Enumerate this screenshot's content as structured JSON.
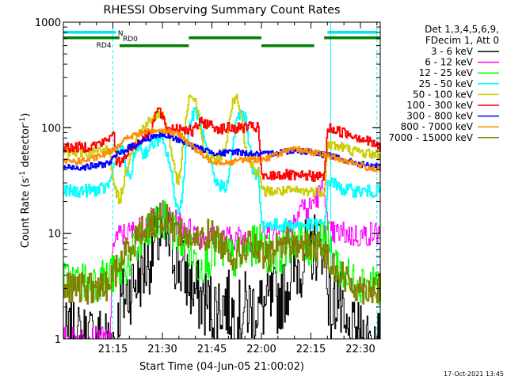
{
  "chart_data": {
    "type": "line",
    "title": "RHESSI Observing Summary Count Rates",
    "xlabel": "Start Time (04-Jun-05 21:00:02)",
    "ylabel": "Count Rate (s⁻¹ detector⁻¹)",
    "ylabel_parts": [
      "Count Rate (s",
      "-1",
      " detector",
      "-1",
      ")"
    ],
    "y_scale": "log",
    "ylim": [
      1,
      1000
    ],
    "xlim": [
      0,
      96
    ],
    "x_ticks": [
      {
        "t": 15,
        "label": "21:15"
      },
      {
        "t": 30,
        "label": "21:30"
      },
      {
        "t": 45,
        "label": "21:45"
      },
      {
        "t": 60,
        "label": "22:00"
      },
      {
        "t": 75,
        "label": "22:15"
      },
      {
        "t": 90,
        "label": "22:30"
      }
    ],
    "y_ticks": [
      {
        "v": 1,
        "label": "1"
      },
      {
        "v": 10,
        "label": "10"
      },
      {
        "v": 100,
        "label": "100"
      },
      {
        "v": 1000,
        "label": "1000"
      }
    ],
    "legend_position": "right",
    "legend_header": [
      "Det 1,3,4,5,6,9,",
      "FDecim 1, Att 0"
    ],
    "timestamp": "17-Oct-2021 13:45",
    "vertical_markers": [
      {
        "t": 0,
        "color": "#00ffff",
        "style": "solid"
      },
      {
        "t": 15,
        "color": "#00ffff",
        "style": "dashed"
      },
      {
        "t": 81,
        "color": "#00ffff",
        "style": "solid"
      },
      {
        "t": 95,
        "color": "#00ffff",
        "style": "dashed"
      }
    ],
    "flag_bars": [
      {
        "t0": 0,
        "t1": 16,
        "level": 0,
        "color": "#00e5ee"
      },
      {
        "t0": 80,
        "t1": 95,
        "level": 0,
        "color": "#00e5ee"
      },
      {
        "t0": 0,
        "t1": 17,
        "level": 1,
        "color": "#007f00"
      },
      {
        "t0": 38,
        "t1": 60,
        "level": 1,
        "color": "#007f00"
      },
      {
        "t0": 79,
        "t1": 96,
        "level": 1,
        "color": "#007f00"
      },
      {
        "t0": 17,
        "t1": 38,
        "level": 2,
        "color": "#007f00"
      },
      {
        "t0": 60,
        "t1": 76,
        "level": 2,
        "color": "#007f00"
      }
    ],
    "flag_labels": [
      {
        "text": "N",
        "t": 16.5,
        "level": 0,
        "color": "#00e5ee"
      },
      {
        "text": "RD0",
        "t": 18,
        "level": 1,
        "color": "#007f00"
      },
      {
        "text": "RD4",
        "t": 10,
        "level": 2,
        "color": "#007f00"
      }
    ],
    "series": [
      {
        "name": "3 - 6 keV",
        "color": "#000000",
        "noise": 0.35,
        "x": [
          0,
          5,
          10,
          14,
          16,
          17,
          20,
          23,
          25,
          27,
          29,
          31,
          33,
          35,
          37,
          39,
          41,
          43,
          45,
          47,
          49,
          51,
          53,
          55,
          57,
          59,
          61,
          63,
          65,
          67,
          69,
          71,
          73,
          75,
          77,
          79,
          81,
          83,
          85,
          87,
          89,
          91,
          93,
          95,
          96
        ],
        "values": [
          1,
          1,
          1,
          1,
          1,
          2,
          3,
          4,
          5,
          7,
          9,
          9,
          7,
          5,
          4,
          3,
          2.5,
          2.2,
          2,
          2,
          2.3,
          1.8,
          1.6,
          2,
          2,
          2,
          2,
          2.2,
          2.4,
          3,
          4,
          5,
          6,
          7,
          8,
          9,
          1.5,
          3,
          1,
          1,
          1,
          1,
          1,
          1,
          1
        ]
      },
      {
        "name": "6 - 12 keV",
        "color": "#ff00ff",
        "noise": 0.12,
        "x": [
          0,
          5,
          10,
          14,
          15,
          17,
          20,
          23,
          26,
          29,
          30,
          33,
          36,
          39,
          42,
          45,
          48,
          51,
          54,
          57,
          60,
          62,
          64,
          66,
          68,
          70,
          72,
          74,
          76,
          78,
          79,
          80,
          82,
          85,
          88,
          91,
          93,
          95,
          96
        ],
        "values": [
          1,
          1,
          1,
          1,
          9,
          9.5,
          10,
          11,
          13,
          15,
          16,
          13,
          12,
          10.5,
          9.5,
          9,
          9,
          9,
          9,
          8.5,
          9,
          9.5,
          10,
          10,
          11,
          14,
          19,
          16,
          21,
          24,
          30,
          10,
          10,
          10,
          9.5,
          9.5,
          10,
          10,
          10
        ]
      },
      {
        "name": "12 - 25 keV",
        "color": "#00ff00",
        "noise": 0.2,
        "x": [
          0,
          5,
          10,
          14,
          16,
          19,
          22,
          26,
          29,
          31,
          34,
          37,
          39,
          41,
          44,
          47,
          50,
          53,
          56,
          59,
          62,
          65,
          68,
          71,
          74,
          77,
          79,
          81,
          83,
          85,
          88,
          91,
          93,
          95,
          96
        ],
        "values": [
          3.5,
          3.5,
          3.5,
          4,
          4,
          5,
          7,
          10,
          13,
          13,
          10,
          8,
          6,
          5,
          6,
          7.5,
          6,
          5.5,
          7,
          8,
          6.5,
          6,
          8,
          9,
          7,
          9,
          10,
          7,
          5,
          4,
          3.5,
          3.5,
          3.5,
          3.5,
          3.2
        ]
      },
      {
        "name": "25 - 50 keV",
        "color": "#00ffff",
        "noise": 0.06,
        "x": [
          0,
          4,
          8,
          12,
          14,
          15,
          16,
          18,
          19,
          20,
          21,
          23,
          24,
          25,
          26,
          27,
          28,
          29,
          30,
          31,
          32,
          33,
          34,
          35,
          36,
          37,
          38,
          39,
          40,
          41,
          42,
          44,
          46,
          48,
          49,
          50,
          51,
          52,
          53,
          54,
          55,
          56,
          57,
          58,
          59,
          60,
          61,
          62,
          63,
          64,
          65,
          67,
          69,
          71,
          73,
          75,
          77,
          79,
          80,
          81,
          82,
          83,
          85,
          87,
          89,
          91,
          93,
          95,
          96
        ],
        "values": [
          25,
          25,
          25.5,
          26,
          30,
          40,
          60,
          60,
          40,
          30,
          50,
          70,
          55,
          60,
          65,
          70,
          75,
          78,
          72,
          60,
          48,
          30,
          20,
          15,
          25,
          60,
          100,
          130,
          140,
          125,
          90,
          50,
          30,
          28,
          28,
          32,
          60,
          100,
          130,
          140,
          125,
          80,
          45,
          35,
          35,
          12,
          12,
          12,
          12,
          12,
          12,
          12,
          12,
          12,
          12,
          12,
          12,
          12,
          28,
          32,
          30,
          27,
          26,
          25.5,
          25,
          25,
          25,
          25,
          25
        ]
      },
      {
        "name": "50 - 100 keV",
        "color": "#cccc00",
        "noise": 0.05,
        "x": [
          0,
          4,
          8,
          12,
          14,
          15,
          17,
          19,
          21,
          23,
          25,
          27,
          28,
          29,
          30,
          31,
          32,
          33,
          34,
          35,
          36,
          37,
          38,
          39,
          40,
          41,
          42,
          44,
          46,
          48,
          49,
          50,
          51,
          52,
          53,
          54,
          55,
          56,
          57,
          58,
          59,
          60,
          61,
          63,
          65,
          67,
          69,
          71,
          73,
          75,
          77,
          79,
          80,
          82,
          85,
          88,
          91,
          94,
          96
        ],
        "values": [
          58,
          58,
          58,
          60,
          65,
          30,
          20,
          40,
          70,
          90,
          110,
          120,
          130,
          140,
          130,
          110,
          80,
          50,
          35,
          30,
          60,
          120,
          180,
          200,
          180,
          120,
          70,
          50,
          50,
          55,
          65,
          100,
          160,
          200,
          180,
          120,
          70,
          50,
          45,
          40,
          40,
          25,
          25,
          25,
          25,
          25,
          25,
          25,
          25,
          25,
          25,
          25,
          70,
          68,
          65,
          60,
          58,
          56,
          55
        ]
      },
      {
        "name": "100 - 300 keV",
        "color": "#ff0000",
        "noise": 0.05,
        "x": [
          0,
          4,
          8,
          12,
          14,
          15,
          16,
          18,
          20,
          22,
          24,
          26,
          27,
          28,
          29,
          30,
          31,
          32,
          33,
          34,
          36,
          38,
          39,
          40,
          41,
          42,
          43,
          44,
          45,
          46,
          48,
          50,
          52,
          54,
          56,
          58,
          59,
          60,
          61,
          63,
          65,
          67,
          69,
          71,
          73,
          75,
          77,
          79,
          80,
          82,
          85,
          88,
          90,
          92,
          94,
          96
        ],
        "values": [
          65,
          65,
          67,
          72,
          80,
          100,
          45,
          50,
          65,
          70,
          80,
          90,
          110,
          140,
          150,
          120,
          100,
          95,
          100,
          100,
          100,
          95,
          90,
          100,
          110,
          112,
          110,
          108,
          105,
          100,
          98,
          100,
          98,
          100,
          102,
          100,
          100,
          35,
          33,
          35,
          36,
          36,
          35,
          34,
          35,
          35,
          34,
          35,
          100,
          95,
          90,
          85,
          80,
          75,
          70,
          64
        ]
      },
      {
        "name": "300 - 800 keV",
        "color": "#0000ff",
        "noise": 0.03,
        "x": [
          0,
          4,
          8,
          12,
          14,
          16,
          18,
          20,
          22,
          24,
          26,
          28,
          30,
          32,
          34,
          36,
          38,
          40,
          42,
          44,
          46,
          48,
          50,
          52,
          54,
          56,
          58,
          60,
          62,
          64,
          66,
          68,
          70,
          72,
          74,
          76,
          78,
          80,
          82,
          84,
          86,
          88,
          90,
          92,
          94,
          96
        ],
        "values": [
          42,
          42,
          43,
          45,
          47,
          55,
          60,
          65,
          70,
          75,
          80,
          85,
          85,
          82,
          78,
          75,
          70,
          65,
          62,
          60,
          58,
          57,
          58,
          60,
          58,
          57,
          56,
          56,
          56,
          58,
          60,
          60,
          62,
          60,
          60,
          58,
          56,
          56,
          53,
          50,
          48,
          47,
          45,
          44,
          43,
          42
        ]
      },
      {
        "name": "800 - 7000 keV",
        "color": "#ff8c00",
        "noise": 0.03,
        "x": [
          0,
          4,
          8,
          12,
          14,
          16,
          18,
          20,
          22,
          24,
          26,
          28,
          30,
          32,
          34,
          36,
          38,
          40,
          42,
          44,
          46,
          48,
          50,
          52,
          54,
          56,
          58,
          60,
          62,
          64,
          66,
          68,
          70,
          72,
          74,
          76,
          78,
          80,
          82,
          84,
          86,
          88,
          90,
          92,
          94,
          96
        ],
        "values": [
          48,
          48,
          50,
          55,
          60,
          66,
          75,
          82,
          86,
          90,
          93,
          95,
          95,
          92,
          88,
          82,
          72,
          62,
          55,
          50,
          48,
          47,
          47,
          48,
          50,
          50,
          50,
          50,
          52,
          55,
          58,
          60,
          62,
          62,
          60,
          58,
          56,
          54,
          52,
          50,
          48,
          46,
          44,
          42,
          41,
          40
        ]
      },
      {
        "name": "7000 - 15000 keV",
        "color": "#808000",
        "noise": 0.15,
        "x": [
          0,
          4,
          8,
          12,
          14,
          16,
          18,
          20,
          22,
          24,
          26,
          28,
          30,
          32,
          34,
          36,
          38,
          40,
          42,
          44,
          46,
          48,
          50,
          52,
          54,
          56,
          58,
          60,
          62,
          64,
          66,
          68,
          70,
          72,
          74,
          76,
          78,
          80,
          82,
          84,
          86,
          88,
          90,
          92,
          94,
          96
        ],
        "values": [
          3,
          3,
          3,
          3,
          3.5,
          4.5,
          6,
          7.5,
          9,
          11,
          12,
          13,
          14,
          13,
          11,
          10,
          9,
          8,
          9,
          10,
          9,
          8,
          7,
          6,
          7,
          8,
          7,
          6,
          6,
          7,
          8,
          8.5,
          8,
          7.5,
          7,
          8,
          7,
          6,
          5,
          4,
          3.5,
          3.2,
          3,
          3,
          3,
          3
        ]
      }
    ]
  }
}
